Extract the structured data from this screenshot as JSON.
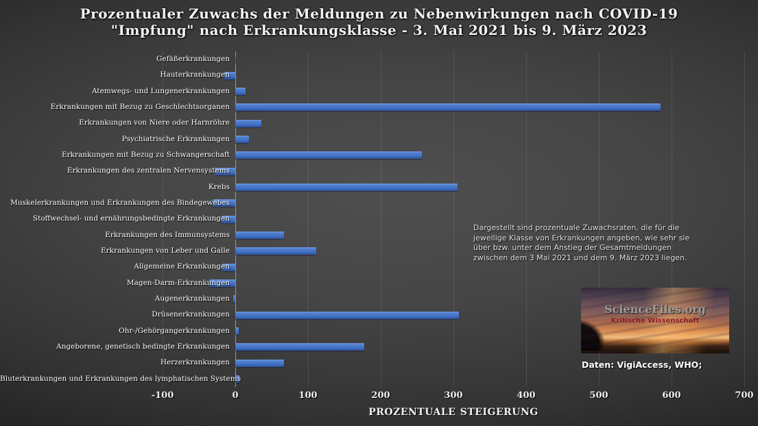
{
  "title": {
    "line1": "Prozentualer Zuwachs der Meldungen zu Nebenwirkungen nach COVID-19",
    "line2": "\"Impfung\" nach Erkrankungsklasse - 3. Mai 2021 bis 9. März 2023"
  },
  "chart_data": {
    "type": "bar",
    "orientation": "horizontal",
    "title": "Prozentualer Zuwachs der Meldungen zu Nebenwirkungen nach COVID-19 \"Impfung\" nach Erkrankungsklasse - 3. Mai 2021 bis 9. März 2023",
    "xlabel": "PROZENTUALE STEIGERUNG",
    "xlim": [
      -100,
      700
    ],
    "xticks": [
      -100,
      0,
      100,
      200,
      300,
      400,
      500,
      600,
      700
    ],
    "grid": true,
    "legend": "none",
    "bar_color": "#4472C4",
    "categories": [
      "Gefäßerkrankungen",
      "Hauterkrankungen",
      "Atemwegs- und Lungenerkrankungen",
      "Erkrankungen mit Bezug zu Geschlechtsorganen",
      "Erkrankungen von Niere oder Harnröhre",
      "Psychiatrische Erkrankungen",
      "Erkrankungen mit Bezug zu Schwangerschaft",
      "Erkrankungen des zentralen Nervensystems",
      "Krebs",
      "Muskelerkrankungen und Erkrankungen des Bindegewebes",
      "Stoffwechsel- und ernährungsbedingte Erkrankungen",
      "Erkrankungen des Immunsystems",
      "Erkrankungen von Leber und Galle",
      "Allgemeine Erkrankungen",
      "Magen-Darm-Erkrankungen",
      "Augenerkrankungen",
      "Drüsenerkrankungen",
      "Ohr-/Gehörgangerkrankungen",
      "Angeborene, genetisch bedingte Erkrankungen",
      "Herzerkrankungen",
      "Bluterkrankungen und Erkrankungen des lymphatischen Systems"
    ],
    "values": [
      1,
      -15,
      14,
      585,
      36,
      19,
      257,
      -28,
      306,
      -31,
      -19,
      67,
      111,
      -18,
      -36,
      -3,
      308,
      5,
      177,
      67,
      6
    ]
  },
  "annotation": {
    "text": "Dargestellt sind prozentuale Zuwachsraten, die für die jeweilige Klasse von Erkrankungen angeben, wie sehr sie über bzw. unter dem Anstieg der Gesamtmeldungen zwischen dem 3 Mai 2021 und dem 9. März 2023 liegen."
  },
  "logo": {
    "site": "ScienceFiles.org",
    "tagline": "Kritische Wissenschaft"
  },
  "source_note": "Daten: VigiAccess, WHO;"
}
